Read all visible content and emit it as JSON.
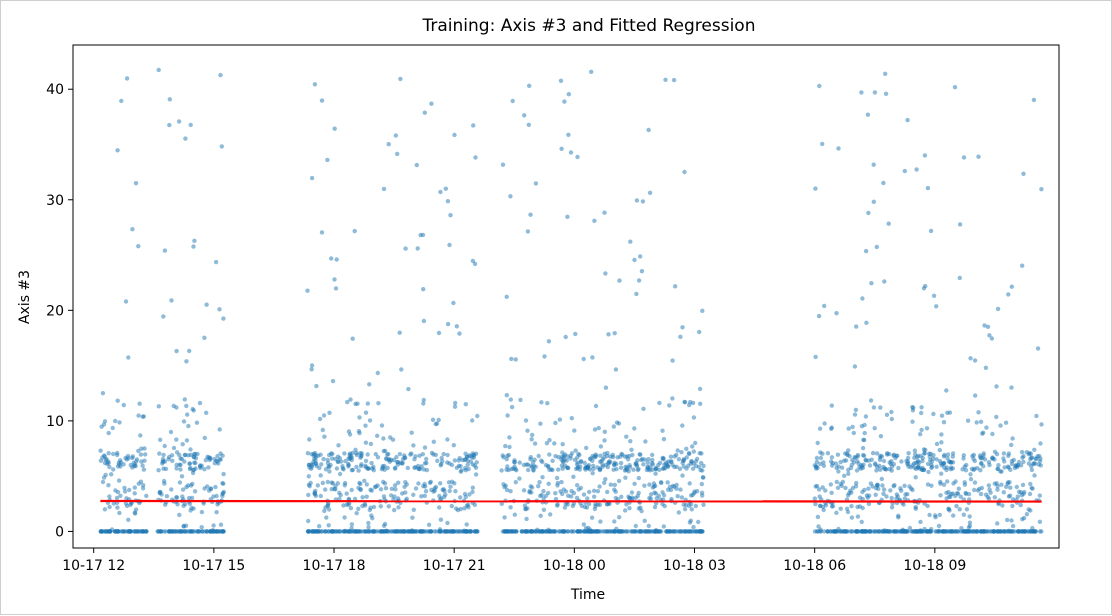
{
  "chart_data": {
    "type": "scatter",
    "title": "Training: Axis #3 and Fitted Regression",
    "xlabel": "Time",
    "ylabel": "Axis #3",
    "x_axis_type": "time",
    "xlim": [
      "2024-10-17T11:29",
      "2024-10-18T12:06"
    ],
    "ylim": [
      -1.5,
      44
    ],
    "xticks": [
      {
        "t": "2024-10-17T12:00",
        "label": "10-17 12"
      },
      {
        "t": "2024-10-17T15:00",
        "label": "10-17 15"
      },
      {
        "t": "2024-10-17T18:00",
        "label": "10-17 18"
      },
      {
        "t": "2024-10-17T21:00",
        "label": "10-17 21"
      },
      {
        "t": "2024-10-18T00:00",
        "label": "10-18 00"
      },
      {
        "t": "2024-10-18T03:00",
        "label": "10-18 03"
      },
      {
        "t": "2024-10-18T06:00",
        "label": "10-18 06"
      },
      {
        "t": "2024-10-18T09:00",
        "label": "10-18 09"
      }
    ],
    "yticks": [
      0,
      10,
      20,
      30,
      40
    ],
    "grid": false,
    "legend": "none",
    "series": [
      {
        "kind": "scatter",
        "color": "#1f77b4",
        "opacity": 0.5,
        "active_periods": [
          [
            "2024-10-17T12:10",
            "2024-10-17T13:20"
          ],
          [
            "2024-10-17T13:35",
            "2024-10-17T15:15"
          ],
          [
            "2024-10-17T17:20",
            "2024-10-17T21:35"
          ],
          [
            "2024-10-17T22:10",
            "2024-10-18T03:15"
          ],
          [
            "2024-10-18T06:00",
            "2024-10-18T11:40"
          ]
        ],
        "dense_bands": [
          [
            0,
            0
          ],
          [
            2,
            4.5
          ],
          [
            5.5,
            7
          ]
        ],
        "y_max": 41.8,
        "baseline_value": 0
      },
      {
        "kind": "line",
        "name": "",
        "color": "#ff0000",
        "x": [
          "2024-10-17T12:10",
          "2024-10-18T11:40"
        ],
        "y": [
          2.75,
          2.7
        ]
      }
    ]
  }
}
